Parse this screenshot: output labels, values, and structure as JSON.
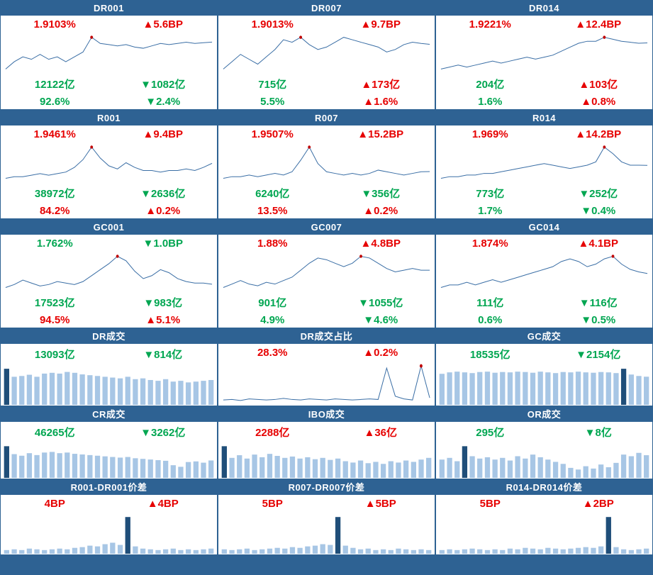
{
  "colors": {
    "header_bg": "#2e6293",
    "border": "#2e6293",
    "up_red": "#e60000",
    "down_green": "#00a651",
    "line": "#3a6ea5",
    "marker": "#c00000",
    "bar_light": "#a7c6e5",
    "bar_dark": "#1f4e79"
  },
  "chart_data": [
    {
      "id": "dr001",
      "title": "DR001",
      "type": "line",
      "rate": {
        "text": "1.9103%",
        "color": "#e60000"
      },
      "rate_chg": {
        "text": "▲5.6BP",
        "color": "#e60000"
      },
      "vol": {
        "text": "12122亿",
        "color": "#00a651"
      },
      "vol_chg": {
        "text": "▼1082亿",
        "color": "#00a651"
      },
      "pct": {
        "text": "92.6%",
        "color": "#00a651"
      },
      "pct_chg": {
        "text": "▼2.4%",
        "color": "#00a651"
      },
      "values": [
        1.8,
        1.83,
        1.85,
        1.84,
        1.86,
        1.84,
        1.85,
        1.83,
        1.85,
        1.87,
        1.93,
        1.905,
        1.9,
        1.895,
        1.9,
        1.89,
        1.885,
        1.895,
        1.905,
        1.9,
        1.905,
        1.91,
        1.905,
        1.908,
        1.9103
      ],
      "marker_index": 10
    },
    {
      "id": "dr007",
      "title": "DR007",
      "type": "line",
      "rate": {
        "text": "1.9013%",
        "color": "#e60000"
      },
      "rate_chg": {
        "text": "▲9.7BP",
        "color": "#e60000"
      },
      "vol": {
        "text": "715亿",
        "color": "#00a651"
      },
      "vol_chg": {
        "text": "▲173亿",
        "color": "#e60000"
      },
      "pct": {
        "text": "5.5%",
        "color": "#00a651"
      },
      "pct_chg": {
        "text": "▲1.6%",
        "color": "#e60000"
      },
      "values": [
        1.8,
        1.83,
        1.86,
        1.84,
        1.82,
        1.85,
        1.88,
        1.92,
        1.91,
        1.93,
        1.9,
        1.88,
        1.89,
        1.91,
        1.93,
        1.92,
        1.91,
        1.9,
        1.89,
        1.87,
        1.88,
        1.9,
        1.91,
        1.905,
        1.9013
      ],
      "marker_index": 9
    },
    {
      "id": "dr014",
      "title": "DR014",
      "type": "line",
      "rate": {
        "text": "1.9221%",
        "color": "#e60000"
      },
      "rate_chg": {
        "text": "▲12.4BP",
        "color": "#e60000"
      },
      "vol": {
        "text": "204亿",
        "color": "#00a651"
      },
      "vol_chg": {
        "text": "▲103亿",
        "color": "#e60000"
      },
      "pct": {
        "text": "1.6%",
        "color": "#00a651"
      },
      "pct_chg": {
        "text": "▲0.8%",
        "color": "#e60000"
      },
      "values": [
        1.79,
        1.8,
        1.81,
        1.8,
        1.81,
        1.82,
        1.83,
        1.82,
        1.83,
        1.84,
        1.85,
        1.84,
        1.85,
        1.86,
        1.88,
        1.9,
        1.92,
        1.93,
        1.93,
        1.95,
        1.94,
        1.93,
        1.925,
        1.92,
        1.9221
      ],
      "marker_index": 19
    },
    {
      "id": "r001",
      "title": "R001",
      "type": "line",
      "rate": {
        "text": "1.9461%",
        "color": "#e60000"
      },
      "rate_chg": {
        "text": "▲9.4BP",
        "color": "#e60000"
      },
      "vol": {
        "text": "38972亿",
        "color": "#00a651"
      },
      "vol_chg": {
        "text": "▼2636亿",
        "color": "#00a651"
      },
      "pct": {
        "text": "84.2%",
        "color": "#e60000"
      },
      "pct_chg": {
        "text": "▲0.2%",
        "color": "#e60000"
      },
      "values": [
        1.85,
        1.86,
        1.86,
        1.87,
        1.88,
        1.87,
        1.88,
        1.89,
        1.92,
        1.97,
        2.05,
        1.98,
        1.93,
        1.91,
        1.95,
        1.92,
        1.9,
        1.9,
        1.89,
        1.9,
        1.9,
        1.91,
        1.9,
        1.92,
        1.9461
      ],
      "marker_index": 10
    },
    {
      "id": "r007",
      "title": "R007",
      "type": "line",
      "rate": {
        "text": "1.9507%",
        "color": "#e60000"
      },
      "rate_chg": {
        "text": "▲15.2BP",
        "color": "#e60000"
      },
      "vol": {
        "text": "6240亿",
        "color": "#00a651"
      },
      "vol_chg": {
        "text": "▼356亿",
        "color": "#00a651"
      },
      "pct": {
        "text": "13.5%",
        "color": "#e60000"
      },
      "pct_chg": {
        "text": "▲0.2%",
        "color": "#e60000"
      },
      "values": [
        1.91,
        1.92,
        1.92,
        1.93,
        1.92,
        1.93,
        1.94,
        1.93,
        1.95,
        2.02,
        2.1,
        2.0,
        1.95,
        1.94,
        1.93,
        1.94,
        1.93,
        1.94,
        1.96,
        1.95,
        1.94,
        1.93,
        1.94,
        1.95,
        1.9507
      ],
      "marker_index": 10
    },
    {
      "id": "r014",
      "title": "R014",
      "type": "line",
      "rate": {
        "text": "1.969%",
        "color": "#e60000"
      },
      "rate_chg": {
        "text": "▲14.2BP",
        "color": "#e60000"
      },
      "vol": {
        "text": "773亿",
        "color": "#00a651"
      },
      "vol_chg": {
        "text": "▼252亿",
        "color": "#00a651"
      },
      "pct": {
        "text": "1.7%",
        "color": "#00a651"
      },
      "pct_chg": {
        "text": "▼0.4%",
        "color": "#00a651"
      },
      "values": [
        1.89,
        1.9,
        1.9,
        1.91,
        1.91,
        1.92,
        1.92,
        1.93,
        1.94,
        1.95,
        1.96,
        1.97,
        1.98,
        1.97,
        1.96,
        1.95,
        1.96,
        1.97,
        1.99,
        2.08,
        2.04,
        1.99,
        1.97,
        1.97,
        1.969
      ],
      "marker_index": 19
    },
    {
      "id": "gc001",
      "title": "GC001",
      "type": "line",
      "rate": {
        "text": "1.762%",
        "color": "#00a651"
      },
      "rate_chg": {
        "text": "▼1.0BP",
        "color": "#00a651"
      },
      "vol": {
        "text": "17523亿",
        "color": "#00a651"
      },
      "vol_chg": {
        "text": "▼983亿",
        "color": "#00a651"
      },
      "pct": {
        "text": "94.5%",
        "color": "#e60000"
      },
      "pct_chg": {
        "text": "▲5.1%",
        "color": "#e60000"
      },
      "values": [
        1.74,
        1.76,
        1.79,
        1.77,
        1.75,
        1.76,
        1.78,
        1.77,
        1.76,
        1.78,
        1.82,
        1.86,
        1.9,
        1.95,
        1.92,
        1.85,
        1.8,
        1.82,
        1.86,
        1.84,
        1.8,
        1.78,
        1.77,
        1.77,
        1.762
      ],
      "marker_index": 13
    },
    {
      "id": "gc007",
      "title": "GC007",
      "type": "line",
      "rate": {
        "text": "1.88%",
        "color": "#e60000"
      },
      "rate_chg": {
        "text": "▲4.8BP",
        "color": "#e60000"
      },
      "vol": {
        "text": "901亿",
        "color": "#00a651"
      },
      "vol_chg": {
        "text": "▼1055亿",
        "color": "#00a651"
      },
      "pct": {
        "text": "4.9%",
        "color": "#00a651"
      },
      "pct_chg": {
        "text": "▼4.6%",
        "color": "#00a651"
      },
      "values": [
        1.78,
        1.8,
        1.82,
        1.8,
        1.79,
        1.81,
        1.8,
        1.82,
        1.84,
        1.88,
        1.92,
        1.95,
        1.94,
        1.92,
        1.9,
        1.92,
        1.96,
        1.95,
        1.92,
        1.89,
        1.87,
        1.88,
        1.89,
        1.88,
        1.88
      ],
      "marker_index": 16
    },
    {
      "id": "gc014",
      "title": "GC014",
      "type": "line",
      "rate": {
        "text": "1.874%",
        "color": "#e60000"
      },
      "rate_chg": {
        "text": "▲4.1BP",
        "color": "#e60000"
      },
      "vol": {
        "text": "111亿",
        "color": "#00a651"
      },
      "vol_chg": {
        "text": "▼116亿",
        "color": "#00a651"
      },
      "pct": {
        "text": "0.6%",
        "color": "#00a651"
      },
      "pct_chg": {
        "text": "▼0.5%",
        "color": "#00a651"
      },
      "values": [
        1.82,
        1.83,
        1.83,
        1.84,
        1.83,
        1.84,
        1.85,
        1.84,
        1.85,
        1.86,
        1.87,
        1.88,
        1.89,
        1.9,
        1.92,
        1.93,
        1.92,
        1.9,
        1.91,
        1.93,
        1.94,
        1.91,
        1.89,
        1.88,
        1.874
      ],
      "marker_index": 20
    },
    {
      "id": "dr-volume",
      "title": "DR成交",
      "type": "bar",
      "stat": {
        "text": "13093亿",
        "color": "#00a651"
      },
      "stat_chg": {
        "text": "▼814亿",
        "color": "#00a651"
      },
      "values": [
        90,
        70,
        72,
        75,
        70,
        78,
        80,
        78,
        82,
        80,
        76,
        74,
        72,
        70,
        68,
        66,
        70,
        64,
        66,
        62,
        60,
        64,
        58,
        60,
        56,
        58,
        60,
        62
      ],
      "highlight_index": 0
    },
    {
      "id": "dr-volume-share",
      "title": "DR成交占比",
      "type": "line",
      "stat": {
        "text": "28.3%",
        "color": "#e60000"
      },
      "stat_chg": {
        "text": "▲0.2%",
        "color": "#e60000"
      },
      "values": [
        27.9,
        28.0,
        27.8,
        28.1,
        28.0,
        27.9,
        28.0,
        28.2,
        28.0,
        27.9,
        28.1,
        28.0,
        27.9,
        28.1,
        28.0,
        27.9,
        28.0,
        28.1,
        28.0,
        33.8,
        28.6,
        28.1,
        27.9,
        34.2,
        28.3
      ],
      "marker_index": 23
    },
    {
      "id": "gc-volume",
      "title": "GC成交",
      "type": "bar",
      "stat": {
        "text": "18535亿",
        "color": "#00a651"
      },
      "stat_chg": {
        "text": "▼2154亿",
        "color": "#00a651"
      },
      "values": [
        86,
        90,
        92,
        90,
        88,
        91,
        92,
        89,
        91,
        90,
        92,
        91,
        89,
        92,
        90,
        88,
        91,
        90,
        92,
        90,
        89,
        91,
        90,
        88,
        100,
        84,
        80,
        78
      ],
      "highlight_index": 24
    },
    {
      "id": "cr-volume",
      "title": "CR成交",
      "type": "bar",
      "stat": {
        "text": "46265亿",
        "color": "#00a651"
      },
      "stat_chg": {
        "text": "▼3262亿",
        "color": "#00a651"
      },
      "values": [
        100,
        75,
        70,
        78,
        72,
        80,
        82,
        78,
        80,
        76,
        74,
        72,
        70,
        68,
        66,
        64,
        66,
        62,
        60,
        58,
        56,
        54,
        40,
        35,
        50,
        52,
        48,
        55
      ],
      "highlight_index": 0
    },
    {
      "id": "ibo-volume",
      "title": "IBO成交",
      "type": "bar",
      "stat": {
        "text": "2288亿",
        "color": "#e60000"
      },
      "stat_chg": {
        "text": "▲36亿",
        "color": "#e60000"
      },
      "values": [
        95,
        60,
        68,
        58,
        70,
        62,
        72,
        66,
        60,
        64,
        58,
        62,
        56,
        60,
        54,
        58,
        50,
        46,
        52,
        44,
        48,
        42,
        50,
        46,
        52,
        48,
        55,
        60
      ],
      "highlight_index": 0
    },
    {
      "id": "or-volume",
      "title": "OR成交",
      "type": "bar",
      "stat": {
        "text": "295亿",
        "color": "#00a651"
      },
      "stat_chg": {
        "text": "▼8亿",
        "color": "#00a651"
      },
      "values": [
        55,
        60,
        50,
        95,
        65,
        58,
        62,
        55,
        60,
        52,
        65,
        58,
        70,
        62,
        55,
        48,
        42,
        30,
        25,
        35,
        28,
        40,
        32,
        45,
        70,
        65,
        75,
        68
      ],
      "highlight_index": 3
    },
    {
      "id": "r001-dr001-spread",
      "title": "R001-DR001价差",
      "type": "bar",
      "stat": {
        "text": "4BP",
        "color": "#e60000"
      },
      "stat_chg": {
        "text": "▲4BP",
        "color": "#e60000"
      },
      "values": [
        10,
        12,
        10,
        14,
        12,
        10,
        12,
        14,
        12,
        16,
        18,
        22,
        20,
        26,
        30,
        24,
        100,
        20,
        14,
        12,
        10,
        12,
        14,
        10,
        12,
        10,
        12,
        14
      ],
      "highlight_index": 16
    },
    {
      "id": "r007-dr007-spread",
      "title": "R007-DR007价差",
      "type": "bar",
      "stat": {
        "text": "5BP",
        "color": "#e60000"
      },
      "stat_chg": {
        "text": "▲5BP",
        "color": "#e60000"
      },
      "values": [
        12,
        10,
        12,
        14,
        10,
        12,
        14,
        16,
        14,
        18,
        16,
        20,
        22,
        26,
        24,
        100,
        22,
        16,
        12,
        14,
        10,
        12,
        10,
        14,
        12,
        10,
        12,
        10
      ],
      "highlight_index": 15
    },
    {
      "id": "r014-dr014-spread",
      "title": "R014-DR014价差",
      "type": "bar",
      "stat": {
        "text": "5BP",
        "color": "#e60000"
      },
      "stat_chg": {
        "text": "▲2BP",
        "color": "#e60000"
      },
      "values": [
        10,
        12,
        10,
        12,
        14,
        12,
        10,
        12,
        10,
        14,
        12,
        16,
        14,
        12,
        16,
        14,
        12,
        14,
        16,
        18,
        16,
        20,
        100,
        18,
        12,
        10,
        12,
        14
      ],
      "highlight_index": 22
    }
  ]
}
